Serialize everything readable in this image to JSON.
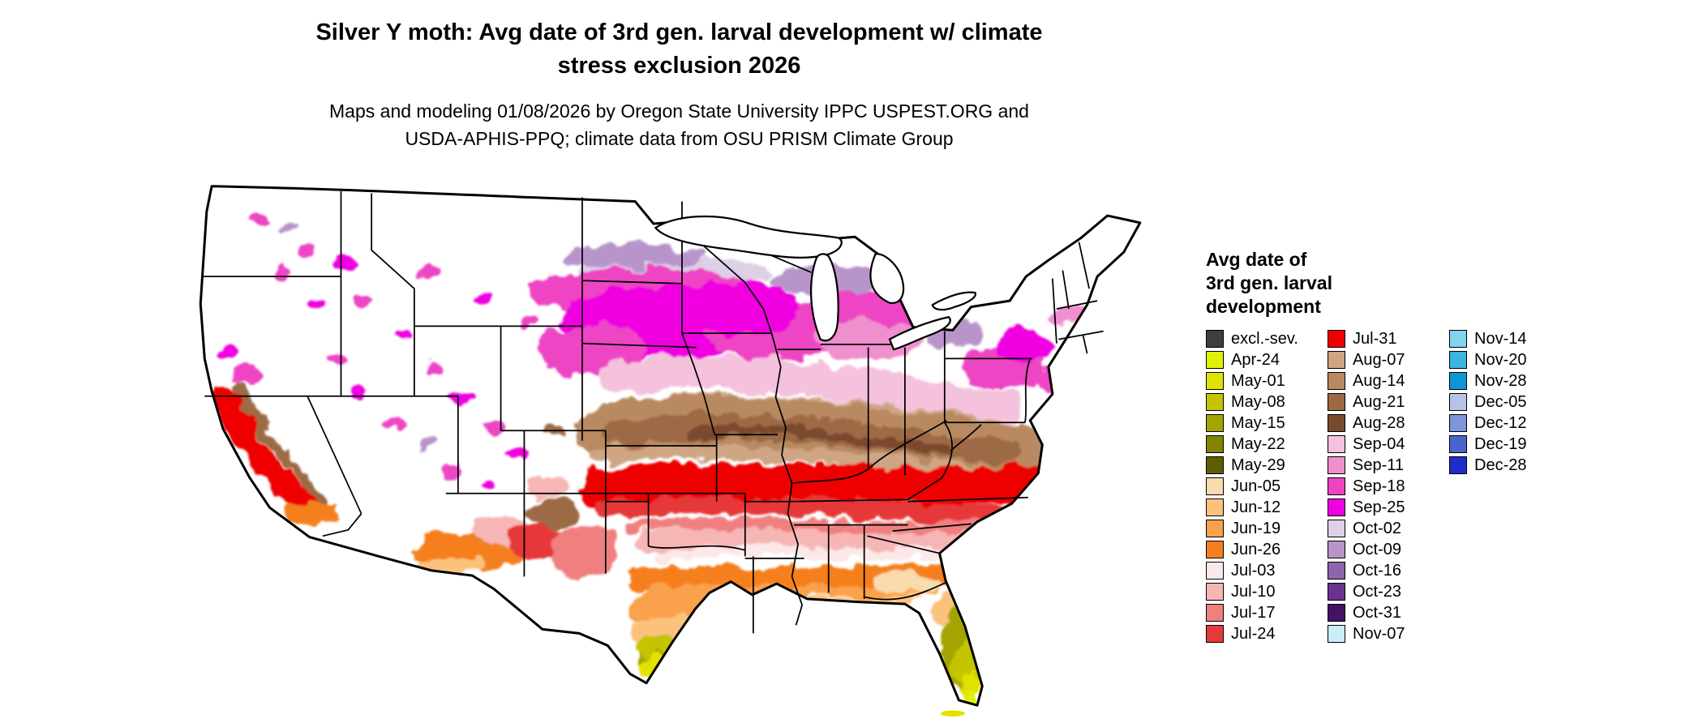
{
  "title": {
    "line1": "Silver Y moth: Avg date of 3rd gen. larval development w/ climate",
    "line2": "stress exclusion 2026"
  },
  "subtitle": {
    "line1": "Maps and modeling 01/08/2026 by Oregon State University IPPC USPEST.ORG and",
    "line2": "USDA-APHIS-PPQ; climate data from OSU PRISM Climate Group"
  },
  "legend": {
    "title_lines": [
      "Avg date of",
      "3rd gen. larval",
      "development"
    ],
    "columns": [
      {
        "items": [
          {
            "label": "excl.-sev.",
            "color": "#3f3f3f"
          },
          {
            "label": "Apr-24",
            "color": "#dff20a"
          },
          {
            "label": "May-01",
            "color": "#e2e200"
          },
          {
            "label": "May-08",
            "color": "#c4c400"
          },
          {
            "label": "May-15",
            "color": "#a4a400"
          },
          {
            "label": "May-22",
            "color": "#848400"
          },
          {
            "label": "May-29",
            "color": "#5e5e00"
          },
          {
            "label": "Jun-05",
            "color": "#f8dcae"
          },
          {
            "label": "Jun-12",
            "color": "#fbc27c"
          },
          {
            "label": "Jun-19",
            "color": "#faa14c"
          },
          {
            "label": "Jun-26",
            "color": "#f57f1f"
          },
          {
            "label": "Jul-03",
            "color": "#fce8e8"
          },
          {
            "label": "Jul-10",
            "color": "#f7b6b6"
          },
          {
            "label": "Jul-17",
            "color": "#f08080"
          },
          {
            "label": "Jul-24",
            "color": "#e63939"
          }
        ]
      },
      {
        "items": [
          {
            "label": "Jul-31",
            "color": "#ee0000"
          },
          {
            "label": "Aug-07",
            "color": "#cfa584"
          },
          {
            "label": "Aug-14",
            "color": "#b98a62"
          },
          {
            "label": "Aug-21",
            "color": "#9c6a44"
          },
          {
            "label": "Aug-28",
            "color": "#7a4a2e"
          },
          {
            "label": "Sep-04",
            "color": "#f4c2dd"
          },
          {
            "label": "Sep-11",
            "color": "#f08fcd"
          },
          {
            "label": "Sep-18",
            "color": "#ee44c4"
          },
          {
            "label": "Sep-25",
            "color": "#f000e0"
          },
          {
            "label": "Oct-02",
            "color": "#ddd0e6"
          },
          {
            "label": "Oct-09",
            "color": "#b795cb"
          },
          {
            "label": "Oct-16",
            "color": "#8d64ad"
          },
          {
            "label": "Oct-23",
            "color": "#6a3391"
          },
          {
            "label": "Oct-31",
            "color": "#451166"
          },
          {
            "label": "Nov-07",
            "color": "#c9eef8"
          }
        ]
      },
      {
        "items": [
          {
            "label": "Nov-14",
            "color": "#7fd4ef"
          },
          {
            "label": "Nov-20",
            "color": "#3cb4e0"
          },
          {
            "label": "Nov-28",
            "color": "#0e96d2"
          },
          {
            "label": "Dec-05",
            "color": "#b4c4e6"
          },
          {
            "label": "Dec-12",
            "color": "#7e95da"
          },
          {
            "label": "Dec-19",
            "color": "#4a63c8"
          },
          {
            "label": "Dec-28",
            "color": "#1e2ecc"
          }
        ]
      }
    ]
  }
}
